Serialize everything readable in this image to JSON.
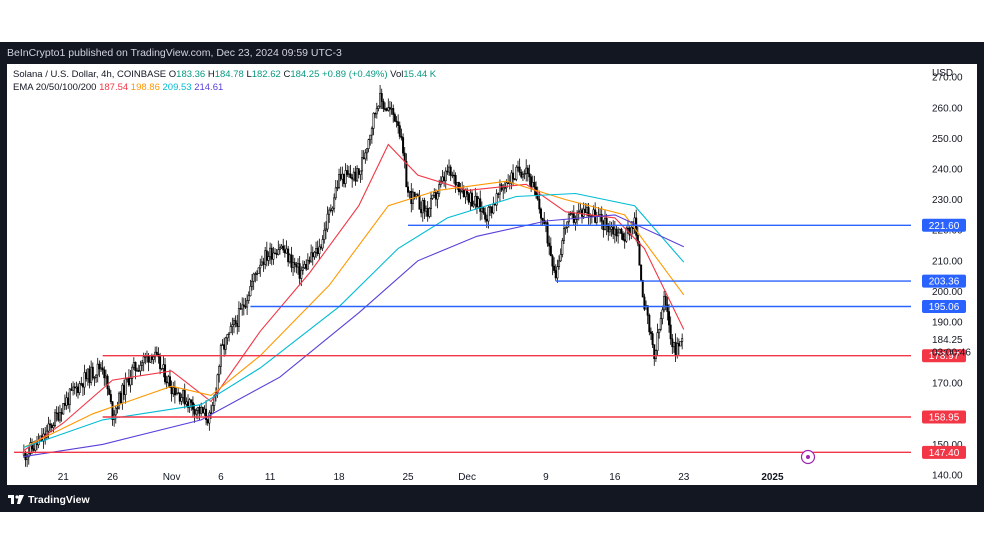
{
  "header": {
    "published": "BeInCrypto1 published on TradingView.com, Dec 23, 2024 09:59 UTC-3"
  },
  "legend": {
    "symbol": "Solana / U.S. Dollar, 4h, COINBASE",
    "o_label": "O",
    "o_value": "183.36",
    "h_label": "H",
    "h_value": "184.78",
    "l_label": "L",
    "l_value": "182.62",
    "c_label": "C",
    "c_value": "184.25",
    "change": "+0.89 (+0.49%)",
    "vol_label": "Vol",
    "vol_value": "15.44 K",
    "ema_label": "EMA 20/50/100/200",
    "ema20": "187.54",
    "ema50": "198.86",
    "ema100": "209.53",
    "ema200": "214.61"
  },
  "currency": "USD",
  "brand": "TradingView",
  "colors": {
    "ema20": "#f23645",
    "ema50": "#ff9800",
    "ema100": "#00bcd4",
    "ema200": "#5b3fd9",
    "support": "#f23645",
    "resistance": "#2962ff",
    "candle": "#000000"
  },
  "chart_data": {
    "type": "candlestick",
    "title": "Solana / U.S. Dollar, 4h, COINBASE",
    "ylim": [
      135,
      273
    ],
    "y_ticks": [
      "140.00",
      "150.00",
      "160.00",
      "170.00",
      "180.00",
      "190.00",
      "200.00",
      "210.00",
      "220.00",
      "230.00",
      "240.00",
      "250.00",
      "260.00",
      "270.00"
    ],
    "x_ticks": [
      "21",
      "26",
      "Nov",
      "6",
      "11",
      "18",
      "25",
      "Dec",
      "9",
      "16",
      "23",
      "2025"
    ],
    "current_price": "184.25",
    "countdown": "03:00:46",
    "price_path": [
      [
        "Oct 17",
        146.5
      ],
      [
        "Oct 19",
        152
      ],
      [
        "Oct 21",
        163
      ],
      [
        "Oct 23",
        171
      ],
      [
        "Oct 25",
        176
      ],
      [
        "Oct 26",
        160
      ],
      [
        "Oct 28",
        174
      ],
      [
        "Oct 30",
        180
      ],
      [
        "Nov 1",
        169
      ],
      [
        "Nov 3",
        163
      ],
      [
        "Nov 5",
        158
      ],
      [
        "Nov 6",
        180
      ],
      [
        "Nov 8",
        193
      ],
      [
        "Nov 10",
        210
      ],
      [
        "Nov 12",
        215
      ],
      [
        "Nov 14",
        206
      ],
      [
        "Nov 16",
        214
      ],
      [
        "Nov 18",
        237
      ],
      [
        "Nov 20",
        238
      ],
      [
        "Nov 22",
        263
      ],
      [
        "Nov 24",
        256
      ],
      [
        "Nov 25",
        232
      ],
      [
        "Nov 27",
        226
      ],
      [
        "Nov 29",
        239
      ],
      [
        "Dec 1",
        232
      ],
      [
        "Dec 3",
        225
      ],
      [
        "Dec 5",
        236
      ],
      [
        "Dec 7",
        241
      ],
      [
        "Dec 9",
        220
      ],
      [
        "Dec 10",
        206
      ],
      [
        "Dec 11",
        222
      ],
      [
        "Dec 13",
        227
      ],
      [
        "Dec 15",
        222
      ],
      [
        "Dec 17",
        218
      ],
      [
        "Dec 18",
        223
      ],
      [
        "Dec 19",
        196
      ],
      [
        "Dec 20",
        178
      ],
      [
        "Dec 21",
        197
      ],
      [
        "Dec 22",
        181
      ],
      [
        "Dec 23",
        184.25
      ]
    ],
    "series": [
      {
        "name": "EMA 20",
        "last": 187.54,
        "path": [
          [
            "Oct 17",
            148
          ],
          [
            "Oct 21",
            157
          ],
          [
            "Oct 26",
            171
          ],
          [
            "Nov 1",
            174
          ],
          [
            "Nov 5",
            164
          ],
          [
            "Nov 10",
            187
          ],
          [
            "Nov 15",
            206
          ],
          [
            "Nov 20",
            228
          ],
          [
            "Nov 23",
            248
          ],
          [
            "Nov 26",
            238
          ],
          [
            "Dec 1",
            233
          ],
          [
            "Dec 7",
            235
          ],
          [
            "Dec 11",
            226
          ],
          [
            "Dec 16",
            224
          ],
          [
            "Dec 19",
            214
          ],
          [
            "Dec 23",
            187.54
          ]
        ]
      },
      {
        "name": "EMA 50",
        "last": 198.86,
        "path": [
          [
            "Oct 17",
            149
          ],
          [
            "Oct 24",
            160
          ],
          [
            "Nov 1",
            169
          ],
          [
            "Nov 5",
            166
          ],
          [
            "Nov 10",
            179
          ],
          [
            "Nov 17",
            202
          ],
          [
            "Nov 23",
            228
          ],
          [
            "Nov 28",
            233
          ],
          [
            "Dec 5",
            236
          ],
          [
            "Dec 11",
            230
          ],
          [
            "Dec 17",
            225
          ],
          [
            "Dec 23",
            198.86
          ]
        ]
      },
      {
        "name": "EMA 100",
        "last": 209.53,
        "path": [
          [
            "Oct 17",
            149
          ],
          [
            "Oct 25",
            158
          ],
          [
            "Nov 4",
            163
          ],
          [
            "Nov 10",
            175
          ],
          [
            "Nov 18",
            195
          ],
          [
            "Nov 24",
            214
          ],
          [
            "Nov 29",
            224
          ],
          [
            "Dec 6",
            231
          ],
          [
            "Dec 12",
            232
          ],
          [
            "Dec 18",
            228
          ],
          [
            "Dec 23",
            209.53
          ]
        ]
      },
      {
        "name": "EMA 200",
        "last": 214.61,
        "path": [
          [
            "Oct 17",
            146
          ],
          [
            "Oct 25",
            150
          ],
          [
            "Nov 4",
            158
          ],
          [
            "Nov 12",
            172
          ],
          [
            "Nov 20",
            193
          ],
          [
            "Nov 26",
            210
          ],
          [
            "Dec 2",
            218
          ],
          [
            "Dec 9",
            223
          ],
          [
            "Dec 16",
            225
          ],
          [
            "Dec 23",
            214.61
          ]
        ]
      }
    ],
    "levels": [
      {
        "value": 221.6,
        "label": "221.60",
        "kind": "resistance",
        "from": "Nov 25"
      },
      {
        "value": 203.36,
        "label": "203.36",
        "kind": "resistance",
        "from": "Dec 10"
      },
      {
        "value": 195.06,
        "label": "195.06",
        "kind": "resistance",
        "from": "Nov 9"
      },
      {
        "value": 178.97,
        "label": "178.97",
        "kind": "support",
        "from": "Oct 25"
      },
      {
        "value": 158.95,
        "label": "158.95",
        "kind": "support",
        "from": "Oct 25"
      },
      {
        "value": 147.4,
        "label": "147.40",
        "kind": "support",
        "from": "Oct 16"
      }
    ]
  }
}
